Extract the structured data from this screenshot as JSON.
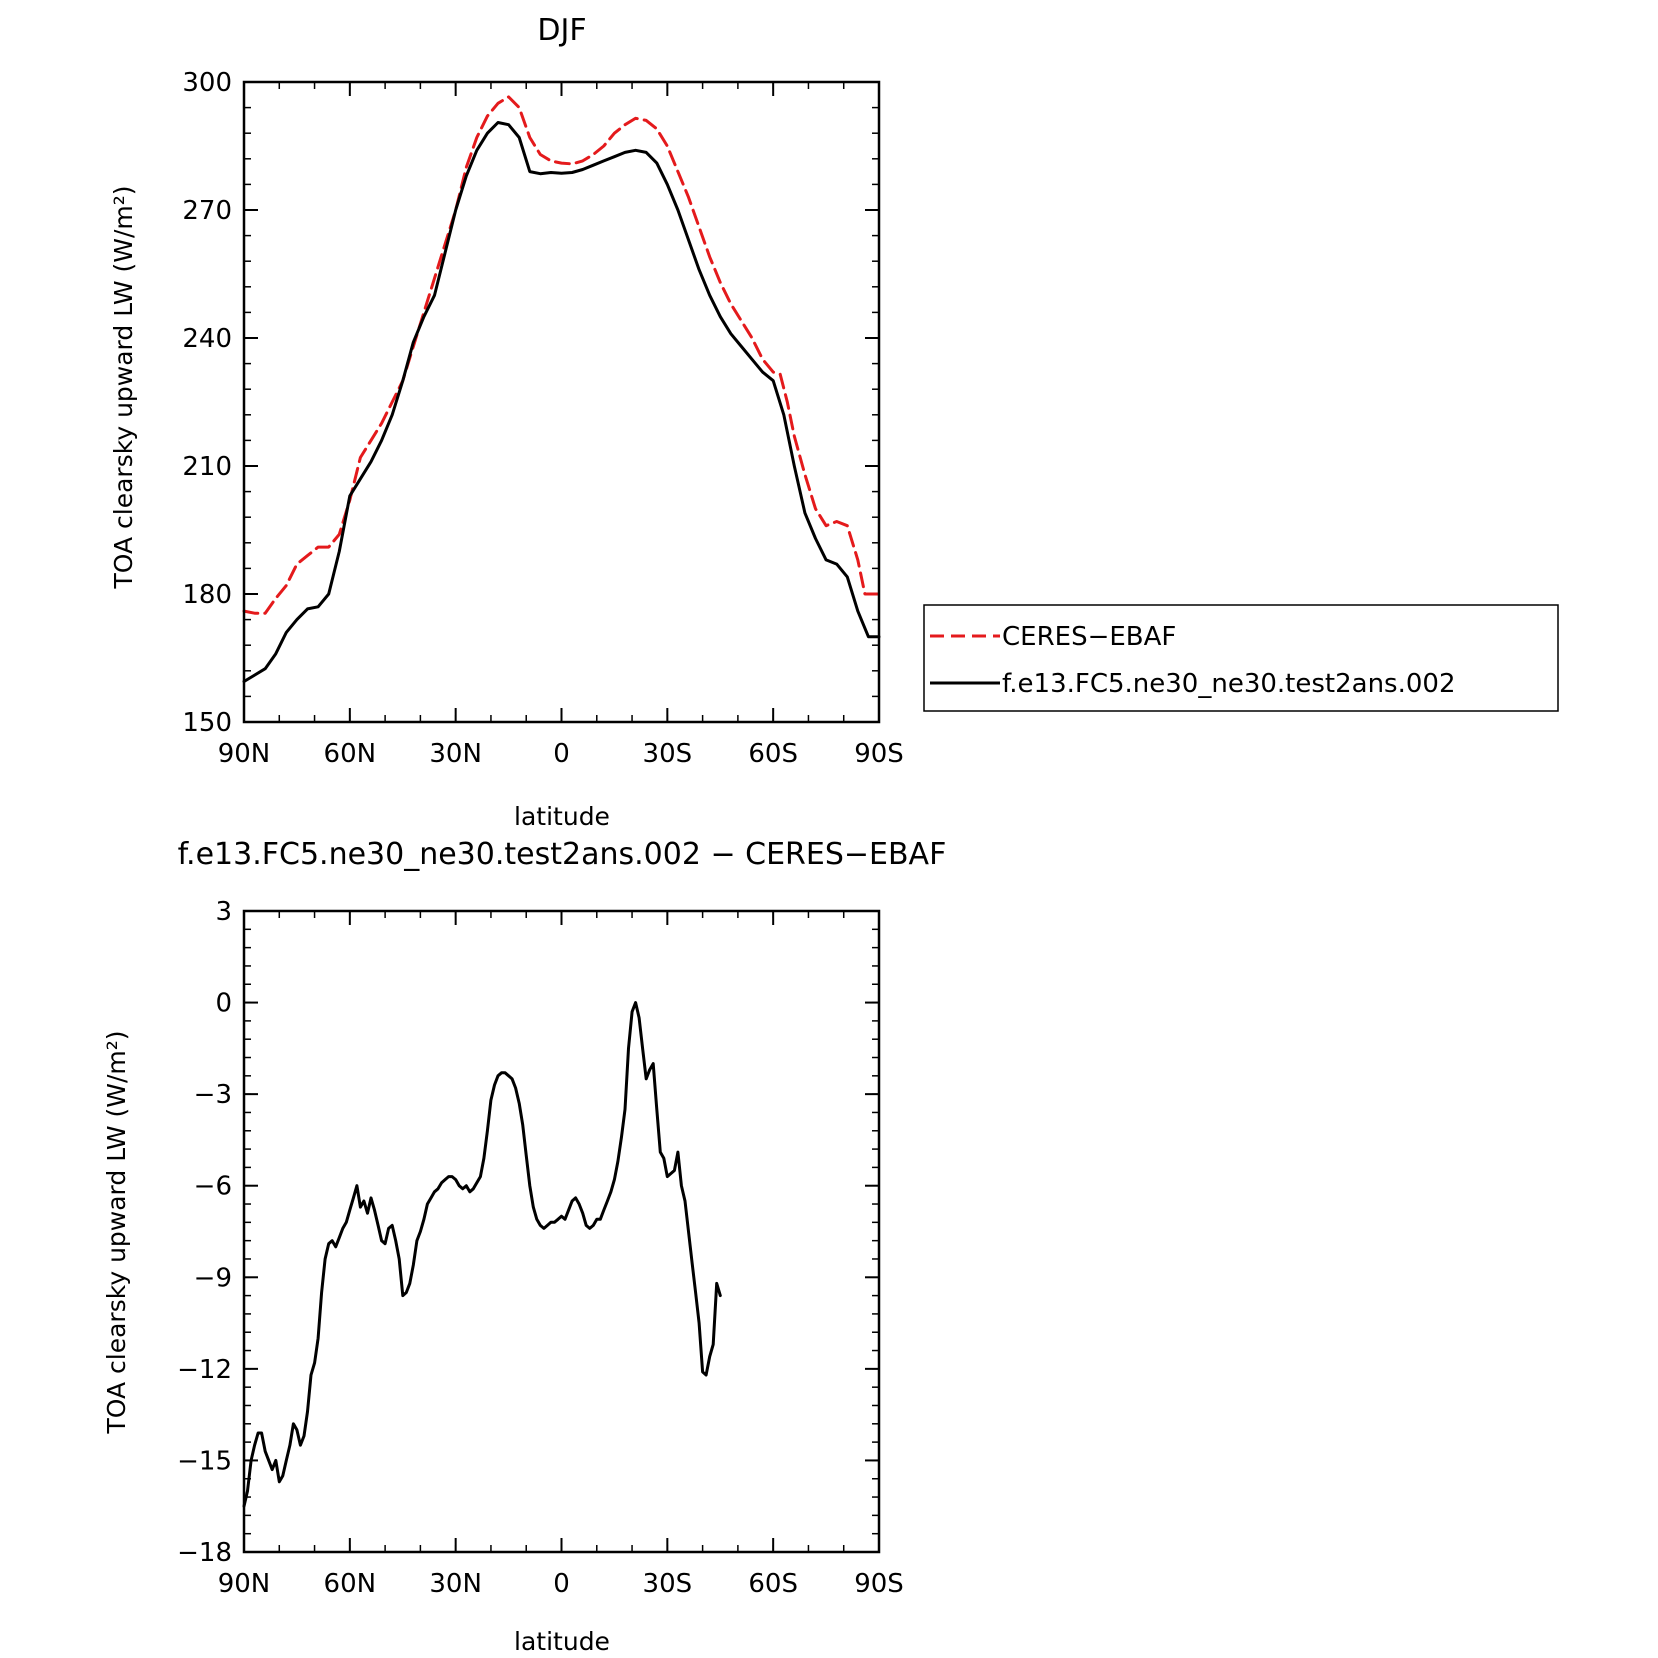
{
  "chart_data": [
    {
      "type": "line",
      "title": "DJF",
      "xlabel": "latitude",
      "ylabel": "TOA clearsky upward LW (W/m²)",
      "xlim": [
        90,
        -90
      ],
      "ylim": [
        150,
        300
      ],
      "x_ticks": [
        90,
        60,
        30,
        0,
        -30,
        -60,
        -90
      ],
      "x_tick_labels": [
        "90N",
        "60N",
        "30N",
        "0",
        "30S",
        "60S",
        "90S"
      ],
      "y_ticks": [
        150,
        180,
        210,
        240,
        270,
        300
      ],
      "y_tick_labels": [
        "150",
        "180",
        "210",
        "240",
        "270",
        "300"
      ],
      "grid": false,
      "legend_placement": "right",
      "series": [
        {
          "name": "CERES−EBAF",
          "color": "#e41a1c",
          "dash": "dashed",
          "points": [
            [
              90,
              176
            ],
            [
              87,
              175.5
            ],
            [
              84,
              175.5
            ],
            [
              81,
              179
            ],
            [
              78,
              182
            ],
            [
              75,
              187
            ],
            [
              72,
              189
            ],
            [
              69,
              191
            ],
            [
              66,
              191
            ],
            [
              63,
              194
            ],
            [
              60,
              202
            ],
            [
              57,
              212
            ],
            [
              54,
              216
            ],
            [
              51,
              220
            ],
            [
              48,
              225
            ],
            [
              45,
              230
            ],
            [
              42,
              238
            ],
            [
              39,
              246
            ],
            [
              36,
              254
            ],
            [
              33,
              262
            ],
            [
              30,
              270
            ],
            [
              27,
              280
            ],
            [
              24,
              287
            ],
            [
              21,
              292
            ],
            [
              18,
              295
            ],
            [
              15,
              296.5
            ],
            [
              12,
              294
            ],
            [
              9,
              287
            ],
            [
              6,
              283
            ],
            [
              3,
              281.5
            ],
            [
              0,
              281
            ],
            [
              -3,
              280.8
            ],
            [
              -6,
              281.5
            ],
            [
              -9,
              283
            ],
            [
              -12,
              285
            ],
            [
              -15,
              288
            ],
            [
              -18,
              290
            ],
            [
              -21,
              291.5
            ],
            [
              -24,
              291
            ],
            [
              -27,
              289
            ],
            [
              -30,
              285
            ],
            [
              -33,
              279
            ],
            [
              -36,
              273
            ],
            [
              -39,
              266
            ],
            [
              -42,
              259
            ],
            [
              -45,
              253
            ],
            [
              -48,
              248
            ],
            [
              -51,
              244
            ],
            [
              -54,
              240
            ],
            [
              -57,
              235
            ],
            [
              -60,
              232
            ],
            [
              -62,
              231.5
            ],
            [
              -64,
              225
            ],
            [
              -66,
              217
            ],
            [
              -69,
              208
            ],
            [
              -72,
              200
            ],
            [
              -75,
              196
            ],
            [
              -78,
              197
            ],
            [
              -81,
              196
            ],
            [
              -84,
              188
            ],
            [
              -86,
              180
            ],
            [
              -90,
              180
            ]
          ]
        },
        {
          "name": "f.e13.FC5.ne30_ne30.test2ans.002",
          "color": "#000000",
          "dash": "solid",
          "points": [
            [
              90,
              159.5
            ],
            [
              87,
              161
            ],
            [
              84,
              162.5
            ],
            [
              81,
              166
            ],
            [
              78,
              171
            ],
            [
              75,
              174
            ],
            [
              72,
              176.5
            ],
            [
              69,
              177
            ],
            [
              66,
              180
            ],
            [
              63,
              190
            ],
            [
              60,
              203
            ],
            [
              57,
              207
            ],
            [
              54,
              211
            ],
            [
              51,
              216
            ],
            [
              48,
              222
            ],
            [
              45,
              230
            ],
            [
              42,
              239
            ],
            [
              39,
              245
            ],
            [
              36,
              250
            ],
            [
              33,
              260
            ],
            [
              30,
              270
            ],
            [
              27,
              278
            ],
            [
              24,
              284
            ],
            [
              21,
              288
            ],
            [
              18,
              290.5
            ],
            [
              15,
              290
            ],
            [
              12,
              287
            ],
            [
              9,
              279
            ],
            [
              6,
              278.5
            ],
            [
              3,
              278.8
            ],
            [
              0,
              278.6
            ],
            [
              -3,
              278.8
            ],
            [
              -6,
              279.5
            ],
            [
              -9,
              280.5
            ],
            [
              -12,
              281.5
            ],
            [
              -15,
              282.5
            ],
            [
              -18,
              283.5
            ],
            [
              -21,
              284
            ],
            [
              -24,
              283.5
            ],
            [
              -27,
              281
            ],
            [
              -30,
              276
            ],
            [
              -33,
              270
            ],
            [
              -36,
              263
            ],
            [
              -39,
              256
            ],
            [
              -42,
              250
            ],
            [
              -45,
              245
            ],
            [
              -48,
              241
            ],
            [
              -51,
              238
            ],
            [
              -54,
              235
            ],
            [
              -57,
              232
            ],
            [
              -60,
              230
            ],
            [
              -63,
              222
            ],
            [
              -66,
              210
            ],
            [
              -69,
              199
            ],
            [
              -72,
              193
            ],
            [
              -75,
              188
            ],
            [
              -78,
              187
            ],
            [
              -81,
              184
            ],
            [
              -84,
              176
            ],
            [
              -87,
              170
            ],
            [
              -90,
              170
            ]
          ]
        }
      ]
    },
    {
      "type": "line",
      "title": "f.e13.FC5.ne30_ne30.test2ans.002 − CERES−EBAF",
      "xlabel": "latitude",
      "ylabel": "TOA clearsky upward LW (W/m²)",
      "xlim": [
        90,
        -90
      ],
      "ylim": [
        -18,
        3
      ],
      "x_ticks": [
        90,
        60,
        30,
        0,
        -30,
        -60,
        -90
      ],
      "x_tick_labels": [
        "90N",
        "60N",
        "30N",
        "0",
        "30S",
        "60S",
        "90S"
      ],
      "y_ticks": [
        -18,
        -15,
        -12,
        -9,
        -6,
        -3,
        0,
        3
      ],
      "y_tick_labels": [
        "−18",
        "−15",
        "−12",
        "−9",
        "−6",
        "−3",
        "0",
        "3"
      ],
      "grid": false,
      "series": [
        {
          "color": "#000000",
          "dash": "solid",
          "points": [
            [
              90,
              -16.5
            ],
            [
              89,
              -16
            ],
            [
              88,
              -15
            ],
            [
              87,
              -14.5
            ],
            [
              86,
              -14.1
            ],
            [
              85,
              -14.1
            ],
            [
              84,
              -14.7
            ],
            [
              83,
              -15
            ],
            [
              82,
              -15.3
            ],
            [
              81,
              -15
            ],
            [
              80,
              -15.7
            ],
            [
              79,
              -15.5
            ],
            [
              78,
              -15
            ],
            [
              77,
              -14.5
            ],
            [
              76,
              -13.8
            ],
            [
              75,
              -14
            ],
            [
              74,
              -14.5
            ],
            [
              73,
              -14.2
            ],
            [
              72,
              -13.4
            ],
            [
              71,
              -12.2
            ],
            [
              70,
              -11.8
            ],
            [
              69,
              -11
            ],
            [
              68,
              -9.5
            ],
            [
              67,
              -8.4
            ],
            [
              66,
              -7.9
            ],
            [
              65,
              -7.8
            ],
            [
              64,
              -8
            ],
            [
              63,
              -7.7
            ],
            [
              62,
              -7.4
            ],
            [
              61,
              -7.2
            ],
            [
              60,
              -6.8
            ],
            [
              59,
              -6.4
            ],
            [
              58,
              -6
            ],
            [
              57,
              -6.7
            ],
            [
              56,
              -6.5
            ],
            [
              55,
              -6.9
            ],
            [
              54,
              -6.4
            ],
            [
              53,
              -6.8
            ],
            [
              52,
              -7.3
            ],
            [
              51,
              -7.8
            ],
            [
              50,
              -7.9
            ],
            [
              49,
              -7.4
            ],
            [
              48,
              -7.3
            ],
            [
              47,
              -7.8
            ],
            [
              46,
              -8.4
            ],
            [
              45,
              -9.6
            ],
            [
              44,
              -9.5
            ],
            [
              43,
              -9.2
            ],
            [
              42,
              -8.6
            ],
            [
              41,
              -7.8
            ],
            [
              40,
              -7.5
            ],
            [
              39,
              -7.1
            ],
            [
              38,
              -6.6
            ],
            [
              37,
              -6.4
            ],
            [
              36,
              -6.2
            ],
            [
              35,
              -6.1
            ],
            [
              34,
              -5.9
            ],
            [
              33,
              -5.8
            ],
            [
              32,
              -5.7
            ],
            [
              31,
              -5.7
            ],
            [
              30,
              -5.8
            ],
            [
              29,
              -6
            ],
            [
              28,
              -6.1
            ],
            [
              27,
              -6
            ],
            [
              26,
              -6.2
            ],
            [
              25,
              -6.1
            ],
            [
              24,
              -5.9
            ],
            [
              23,
              -5.7
            ],
            [
              22,
              -5.1
            ],
            [
              21,
              -4.2
            ],
            [
              20,
              -3.2
            ],
            [
              19,
              -2.7
            ],
            [
              18,
              -2.4
            ],
            [
              17,
              -2.3
            ],
            [
              16,
              -2.3
            ],
            [
              15,
              -2.4
            ],
            [
              14,
              -2.5
            ],
            [
              13,
              -2.8
            ],
            [
              12,
              -3.3
            ],
            [
              11,
              -4
            ],
            [
              10,
              -5
            ],
            [
              9,
              -6
            ],
            [
              8,
              -6.7
            ],
            [
              7,
              -7.1
            ],
            [
              6,
              -7.3
            ],
            [
              5,
              -7.4
            ],
            [
              4,
              -7.3
            ],
            [
              3,
              -7.2
            ],
            [
              2,
              -7.2
            ],
            [
              1,
              -7.1
            ],
            [
              0,
              -7
            ],
            [
              -1,
              -7.1
            ],
            [
              -2,
              -6.8
            ],
            [
              -3,
              -6.5
            ],
            [
              -4,
              -6.4
            ],
            [
              -5,
              -6.6
            ],
            [
              -6,
              -6.9
            ],
            [
              -7,
              -7.3
            ],
            [
              -8,
              -7.4
            ],
            [
              -9,
              -7.3
            ],
            [
              -10,
              -7.1
            ],
            [
              -11,
              -7.1
            ],
            [
              -12,
              -6.8
            ],
            [
              -13,
              -6.5
            ],
            [
              -14,
              -6.2
            ],
            [
              -15,
              -5.8
            ],
            [
              -16,
              -5.2
            ],
            [
              -17,
              -4.4
            ],
            [
              -18,
              -3.5
            ],
            [
              -19,
              -1.5
            ],
            [
              -20,
              -0.3
            ],
            [
              -21,
              0
            ],
            [
              -22,
              -0.5
            ],
            [
              -23,
              -1.5
            ],
            [
              -24,
              -2.5
            ],
            [
              -25,
              -2.2
            ],
            [
              -26,
              -2
            ],
            [
              -27,
              -3.5
            ],
            [
              -28,
              -4.9
            ],
            [
              -29,
              -5.1
            ],
            [
              -30,
              -5.7
            ],
            [
              -31,
              -5.6
            ],
            [
              -32,
              -5.5
            ],
            [
              -33,
              -4.9
            ],
            [
              -34,
              -6
            ],
            [
              -35,
              -6.5
            ],
            [
              -36,
              -7.5
            ],
            [
              -37,
              -8.5
            ],
            [
              -38,
              -9.5
            ],
            [
              -39,
              -10.5
            ],
            [
              -40,
              -12.1
            ],
            [
              -41,
              -12.2
            ],
            [
              -42,
              -11.6
            ],
            [
              -43,
              -11.2
            ],
            [
              -44,
              -9.2
            ],
            [
              -45,
              -9.6
            ]
          ]
        }
      ]
    }
  ]
}
